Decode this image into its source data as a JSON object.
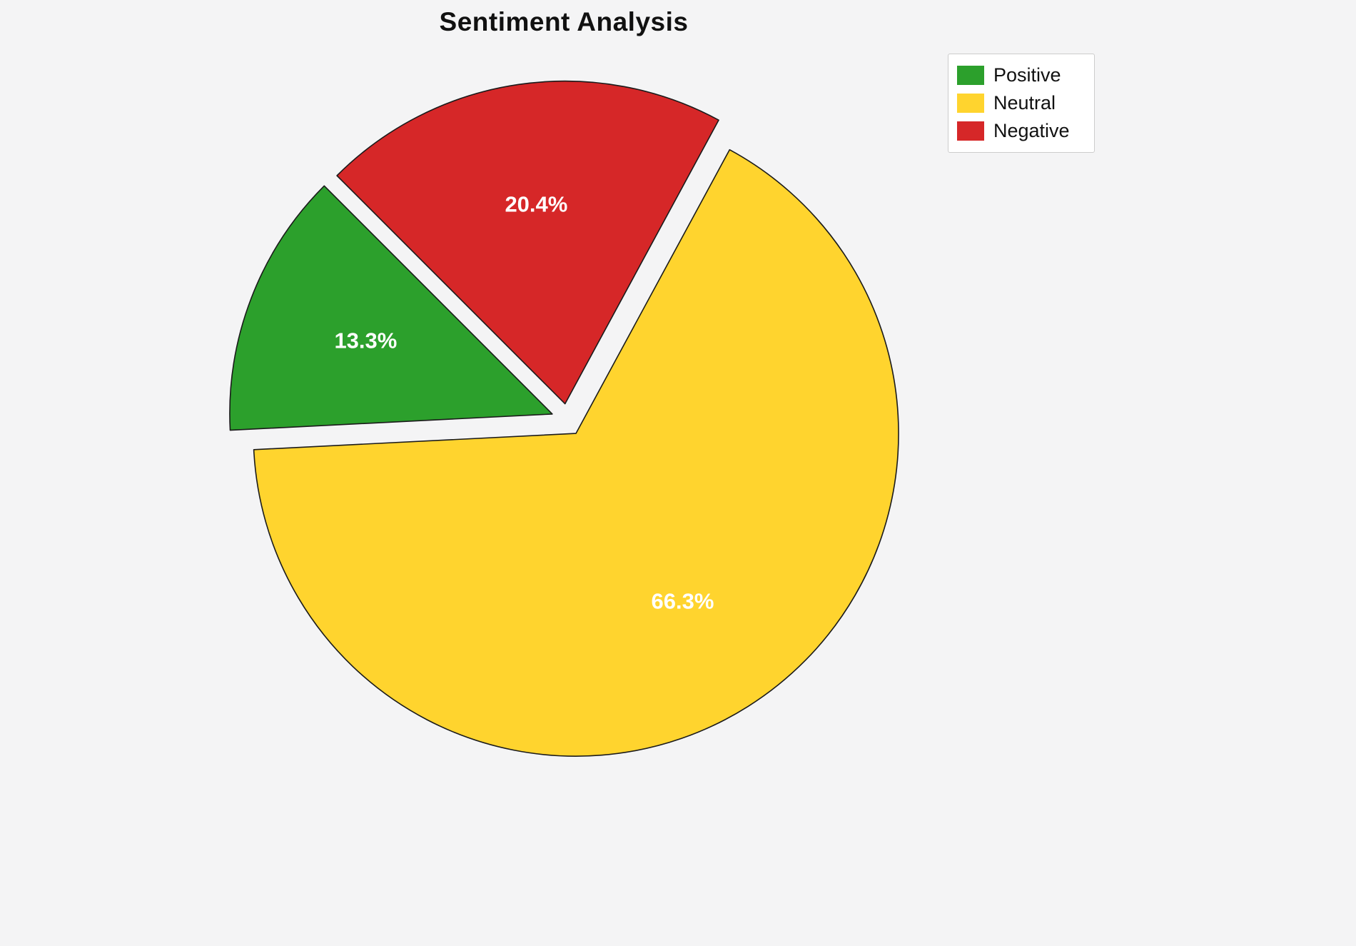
{
  "page": {
    "background": "#f4f4f5"
  },
  "chart_data": {
    "type": "pie",
    "title": "Sentiment Analysis",
    "labels": [
      "Positive",
      "Neutral",
      "Negative"
    ],
    "values": [
      13.3,
      66.3,
      20.4
    ],
    "percent_labels": [
      "13.3%",
      "66.3%",
      "20.4%"
    ],
    "colors": [
      "#2ca02c",
      "#ffd42e",
      "#d62728"
    ],
    "edge_color": "#1a1a1a",
    "label_color": "#ffffff",
    "start_angle": 135,
    "direction": "counterclockwise",
    "explode": 0.05,
    "pct_distance": 0.62,
    "legend": {
      "position": "upper right",
      "entries": [
        "Positive",
        "Neutral",
        "Negative"
      ]
    }
  }
}
